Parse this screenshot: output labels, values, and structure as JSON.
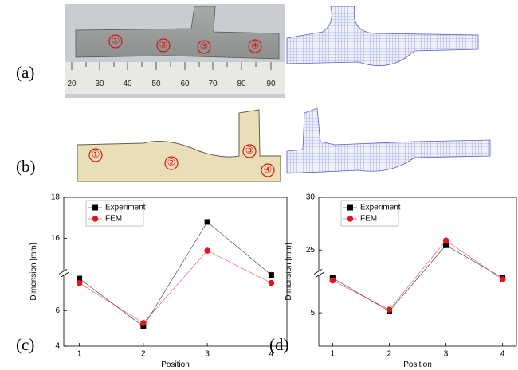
{
  "panel_labels": [
    "(a)",
    "(b)",
    "(c)",
    "(d)"
  ],
  "ruler_labels": [
    "20",
    "30",
    "40",
    "50",
    "60",
    "70",
    "80",
    "90"
  ],
  "photo_a_markers": [
    "①",
    "②",
    "③",
    "④"
  ],
  "photo_b_markers": [
    "①",
    "②",
    "③",
    "④"
  ],
  "chart_data": [
    {
      "type": "line",
      "x_label": "Position",
      "y_label": "Dimension [mm]",
      "categories": [
        "1",
        "2",
        "3",
        "4"
      ],
      "ylim": [
        4,
        18
      ],
      "ybreak": [
        8.1,
        14.3
      ],
      "yticks": [
        4,
        6,
        16,
        18
      ],
      "legend": "upper left",
      "series": [
        {
          "name": "Experiment",
          "color": "#000000",
          "marker": "square",
          "values": [
            7.8,
            5.1,
            16.8,
            8.0
          ]
        },
        {
          "name": "FEM",
          "color": "#e8141a",
          "marker": "circle",
          "values": [
            7.55,
            5.3,
            15.4,
            7.55
          ]
        }
      ]
    },
    {
      "type": "line",
      "x_label": "Position",
      "y_label": "Dimension [mm]",
      "categories": [
        "1",
        "2",
        "3",
        "4"
      ],
      "ylim": [
        1.8,
        30
      ],
      "ybreak": [
        8.8,
        22.8
      ],
      "yticks": [
        5,
        25,
        30
      ],
      "legend": "upper left",
      "series": [
        {
          "name": "Experiment",
          "color": "#000000",
          "marker": "square",
          "values": [
            8.35,
            5.15,
            25.45,
            8.35
          ]
        },
        {
          "name": "FEM",
          "color": "#e8141a",
          "marker": "circle",
          "values": [
            8.1,
            5.3,
            25.9,
            8.2
          ]
        }
      ]
    }
  ]
}
